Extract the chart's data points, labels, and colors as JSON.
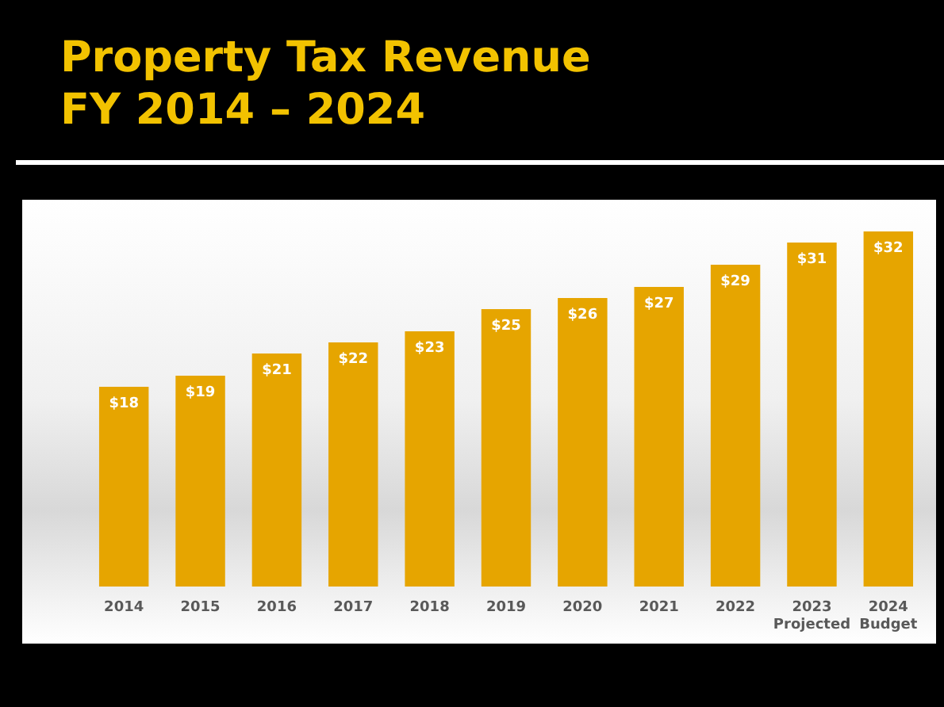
{
  "chart_data": {
    "type": "bar",
    "title": [
      "Property Tax Revenue",
      "FY 2014 – 2024"
    ],
    "categories": [
      "2014",
      "2015",
      "2016",
      "2017",
      "2018",
      "2019",
      "2020",
      "2021",
      "2022",
      "2023 Projected",
      "2024 Budget"
    ],
    "values": [
      18,
      19,
      21,
      22,
      23,
      25,
      26,
      27,
      29,
      31,
      32
    ],
    "value_labels": [
      "$18",
      "$19",
      "$21",
      "$22",
      "$23",
      "$25",
      "$26",
      "$27",
      "$29",
      "$31",
      "$32"
    ],
    "color": "#e6a500"
  }
}
